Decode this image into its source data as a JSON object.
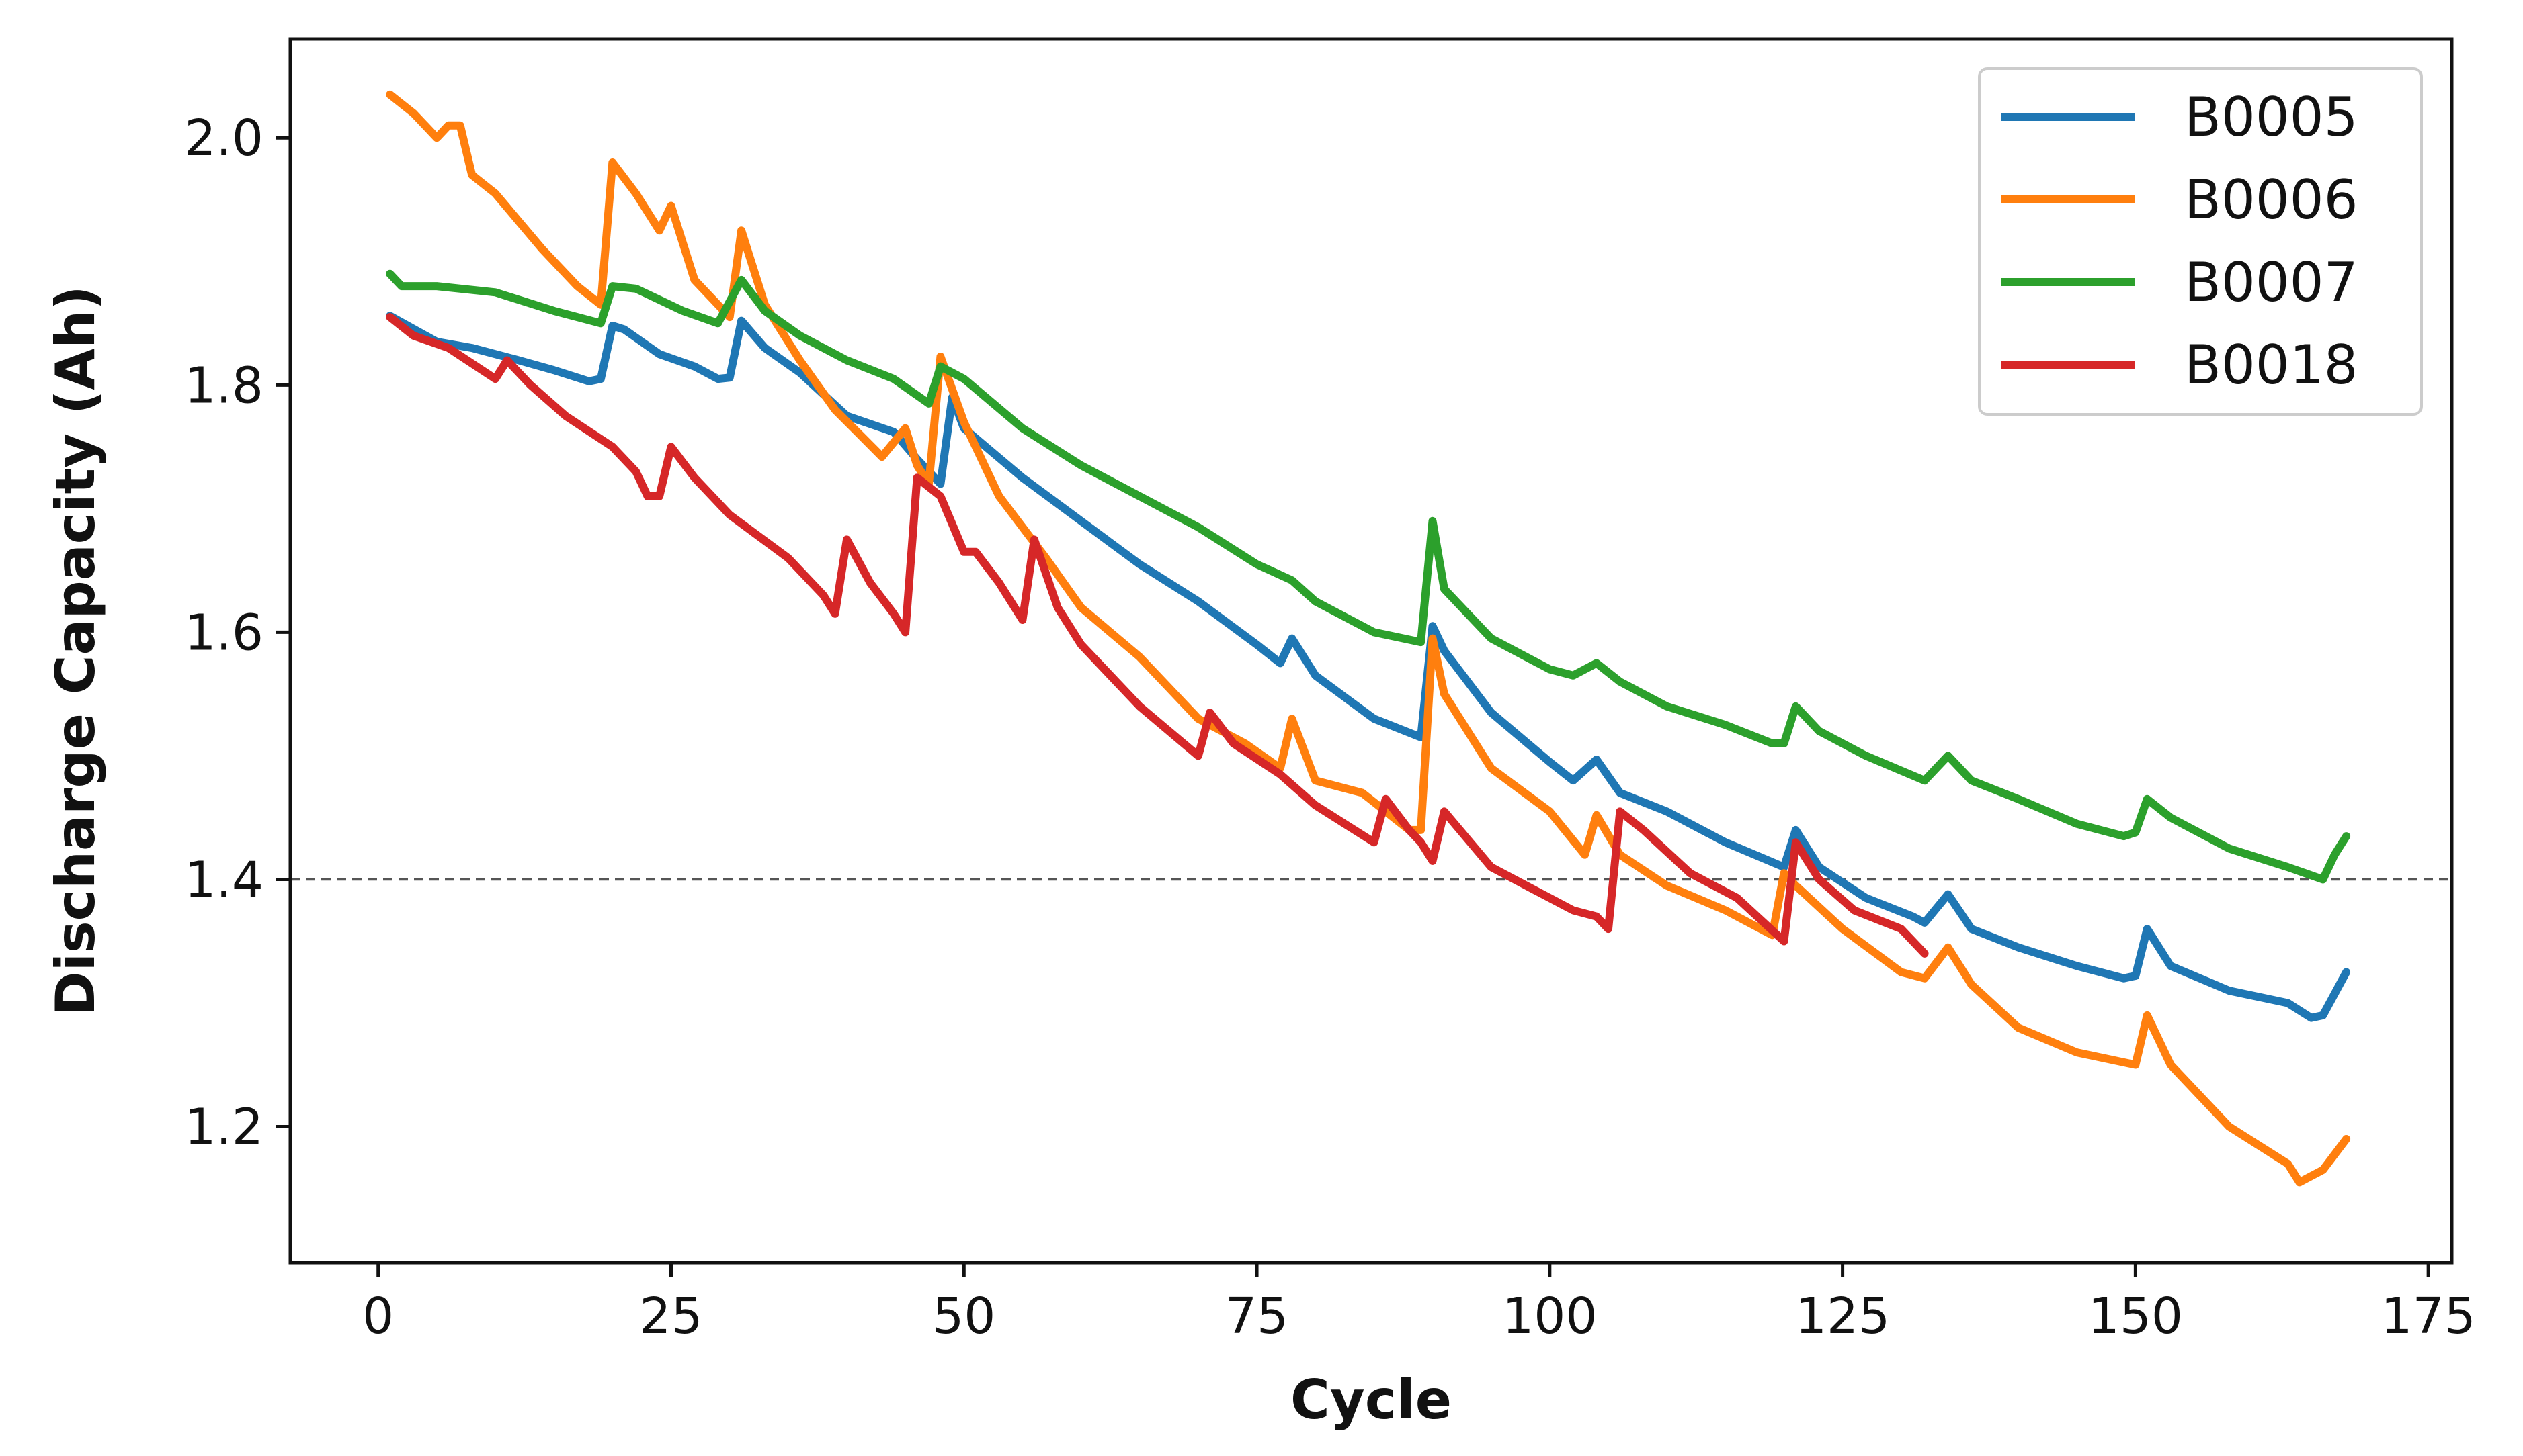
{
  "chart_data": {
    "type": "line",
    "title": "",
    "xlabel": "Cycle",
    "ylabel": "Discharge Capacity (Ah)",
    "xlim": [
      -7.5,
      177
    ],
    "ylim": [
      1.09,
      2.08
    ],
    "xticks": [
      0,
      25,
      50,
      75,
      100,
      125,
      150,
      175
    ],
    "yticks": [
      1.2,
      1.4,
      1.6,
      1.8,
      2.0
    ],
    "xtick_labels": [
      "0",
      "25",
      "50",
      "75",
      "100",
      "125",
      "150",
      "175"
    ],
    "ytick_labels": [
      "1.2",
      "1.4",
      "1.6",
      "1.8",
      "2.0"
    ],
    "grid": false,
    "legend_position": "top-right",
    "reference_line": {
      "y": 1.4,
      "style": "dashed",
      "color": "#555555"
    },
    "series": [
      {
        "name": "B0005",
        "color": "#1f77b4",
        "points": [
          [
            1,
            1.856
          ],
          [
            5,
            1.835
          ],
          [
            8,
            1.83
          ],
          [
            12,
            1.82
          ],
          [
            15,
            1.812
          ],
          [
            18,
            1.803
          ],
          [
            19,
            1.805
          ],
          [
            20,
            1.848
          ],
          [
            21,
            1.845
          ],
          [
            24,
            1.825
          ],
          [
            27,
            1.815
          ],
          [
            29,
            1.805
          ],
          [
            30,
            1.806
          ],
          [
            31,
            1.852
          ],
          [
            33,
            1.83
          ],
          [
            36,
            1.81
          ],
          [
            40,
            1.775
          ],
          [
            44,
            1.762
          ],
          [
            46,
            1.74
          ],
          [
            48,
            1.72
          ],
          [
            49,
            1.79
          ],
          [
            50,
            1.765
          ],
          [
            55,
            1.725
          ],
          [
            60,
            1.69
          ],
          [
            65,
            1.655
          ],
          [
            70,
            1.625
          ],
          [
            75,
            1.59
          ],
          [
            77,
            1.575
          ],
          [
            78,
            1.595
          ],
          [
            80,
            1.565
          ],
          [
            85,
            1.53
          ],
          [
            89,
            1.515
          ],
          [
            90,
            1.605
          ],
          [
            91,
            1.585
          ],
          [
            95,
            1.535
          ],
          [
            100,
            1.495
          ],
          [
            102,
            1.48
          ],
          [
            104,
            1.497
          ],
          [
            106,
            1.47
          ],
          [
            110,
            1.455
          ],
          [
            115,
            1.43
          ],
          [
            120,
            1.41
          ],
          [
            121,
            1.44
          ],
          [
            123,
            1.41
          ],
          [
            127,
            1.385
          ],
          [
            131,
            1.37
          ],
          [
            132,
            1.365
          ],
          [
            134,
            1.388
          ],
          [
            136,
            1.36
          ],
          [
            140,
            1.345
          ],
          [
            145,
            1.33
          ],
          [
            149,
            1.32
          ],
          [
            150,
            1.322
          ],
          [
            151,
            1.36
          ],
          [
            153,
            1.33
          ],
          [
            158,
            1.31
          ],
          [
            163,
            1.3
          ],
          [
            165,
            1.288
          ],
          [
            166,
            1.29
          ],
          [
            168,
            1.325
          ]
        ]
      },
      {
        "name": "B0006",
        "color": "#ff7f0e",
        "points": [
          [
            1,
            2.035
          ],
          [
            3,
            2.02
          ],
          [
            5,
            2.0
          ],
          [
            6,
            2.01
          ],
          [
            7,
            2.01
          ],
          [
            8,
            1.97
          ],
          [
            10,
            1.955
          ],
          [
            14,
            1.91
          ],
          [
            17,
            1.88
          ],
          [
            19,
            1.865
          ],
          [
            20,
            1.98
          ],
          [
            22,
            1.955
          ],
          [
            24,
            1.925
          ],
          [
            25,
            1.945
          ],
          [
            27,
            1.885
          ],
          [
            30,
            1.855
          ],
          [
            31,
            1.925
          ],
          [
            33,
            1.865
          ],
          [
            36,
            1.82
          ],
          [
            39,
            1.78
          ],
          [
            43,
            1.742
          ],
          [
            45,
            1.765
          ],
          [
            46,
            1.735
          ],
          [
            47,
            1.72
          ],
          [
            48,
            1.823
          ],
          [
            50,
            1.77
          ],
          [
            53,
            1.71
          ],
          [
            57,
            1.66
          ],
          [
            60,
            1.62
          ],
          [
            65,
            1.58
          ],
          [
            70,
            1.53
          ],
          [
            74,
            1.51
          ],
          [
            77,
            1.49
          ],
          [
            78,
            1.53
          ],
          [
            80,
            1.48
          ],
          [
            84,
            1.47
          ],
          [
            88,
            1.44
          ],
          [
            89,
            1.44
          ],
          [
            90,
            1.595
          ],
          [
            91,
            1.55
          ],
          [
            95,
            1.49
          ],
          [
            100,
            1.455
          ],
          [
            103,
            1.42
          ],
          [
            104,
            1.452
          ],
          [
            106,
            1.42
          ],
          [
            110,
            1.395
          ],
          [
            115,
            1.375
          ],
          [
            119,
            1.355
          ],
          [
            120,
            1.405
          ],
          [
            121,
            1.395
          ],
          [
            125,
            1.36
          ],
          [
            130,
            1.325
          ],
          [
            132,
            1.32
          ],
          [
            134,
            1.345
          ],
          [
            136,
            1.315
          ],
          [
            140,
            1.28
          ],
          [
            145,
            1.26
          ],
          [
            150,
            1.25
          ],
          [
            151,
            1.29
          ],
          [
            153,
            1.25
          ],
          [
            158,
            1.2
          ],
          [
            163,
            1.17
          ],
          [
            164,
            1.155
          ],
          [
            166,
            1.165
          ],
          [
            168,
            1.19
          ]
        ]
      },
      {
        "name": "B0007",
        "color": "#2ca02c",
        "points": [
          [
            1,
            1.89
          ],
          [
            2,
            1.88
          ],
          [
            5,
            1.88
          ],
          [
            10,
            1.875
          ],
          [
            15,
            1.86
          ],
          [
            19,
            1.85
          ],
          [
            20,
            1.88
          ],
          [
            22,
            1.878
          ],
          [
            26,
            1.86
          ],
          [
            29,
            1.85
          ],
          [
            31,
            1.885
          ],
          [
            33,
            1.86
          ],
          [
            36,
            1.84
          ],
          [
            40,
            1.82
          ],
          [
            44,
            1.805
          ],
          [
            47,
            1.785
          ],
          [
            48,
            1.815
          ],
          [
            50,
            1.805
          ],
          [
            55,
            1.765
          ],
          [
            60,
            1.735
          ],
          [
            65,
            1.71
          ],
          [
            70,
            1.685
          ],
          [
            75,
            1.655
          ],
          [
            78,
            1.642
          ],
          [
            80,
            1.625
          ],
          [
            85,
            1.6
          ],
          [
            89,
            1.592
          ],
          [
            90,
            1.69
          ],
          [
            91,
            1.635
          ],
          [
            95,
            1.595
          ],
          [
            100,
            1.57
          ],
          [
            102,
            1.565
          ],
          [
            104,
            1.575
          ],
          [
            106,
            1.56
          ],
          [
            110,
            1.54
          ],
          [
            115,
            1.525
          ],
          [
            119,
            1.51
          ],
          [
            120,
            1.51
          ],
          [
            121,
            1.54
          ],
          [
            123,
            1.52
          ],
          [
            127,
            1.5
          ],
          [
            132,
            1.48
          ],
          [
            134,
            1.5
          ],
          [
            136,
            1.48
          ],
          [
            140,
            1.465
          ],
          [
            145,
            1.445
          ],
          [
            149,
            1.435
          ],
          [
            150,
            1.438
          ],
          [
            151,
            1.465
          ],
          [
            153,
            1.45
          ],
          [
            158,
            1.425
          ],
          [
            163,
            1.41
          ],
          [
            166,
            1.4
          ],
          [
            167,
            1.42
          ],
          [
            168,
            1.435
          ]
        ]
      },
      {
        "name": "B0018",
        "color": "#d62728",
        "points": [
          [
            1,
            1.855
          ],
          [
            3,
            1.84
          ],
          [
            6,
            1.83
          ],
          [
            10,
            1.805
          ],
          [
            11,
            1.82
          ],
          [
            13,
            1.8
          ],
          [
            16,
            1.775
          ],
          [
            20,
            1.75
          ],
          [
            22,
            1.73
          ],
          [
            23,
            1.71
          ],
          [
            24,
            1.71
          ],
          [
            25,
            1.75
          ],
          [
            27,
            1.725
          ],
          [
            30,
            1.695
          ],
          [
            35,
            1.66
          ],
          [
            38,
            1.63
          ],
          [
            39,
            1.615
          ],
          [
            40,
            1.675
          ],
          [
            42,
            1.64
          ],
          [
            44,
            1.615
          ],
          [
            45,
            1.6
          ],
          [
            46,
            1.725
          ],
          [
            48,
            1.71
          ],
          [
            50,
            1.665
          ],
          [
            51,
            1.665
          ],
          [
            53,
            1.64
          ],
          [
            55,
            1.61
          ],
          [
            56,
            1.675
          ],
          [
            58,
            1.62
          ],
          [
            60,
            1.59
          ],
          [
            65,
            1.54
          ],
          [
            70,
            1.5
          ],
          [
            71,
            1.535
          ],
          [
            73,
            1.51
          ],
          [
            77,
            1.485
          ],
          [
            80,
            1.46
          ],
          [
            85,
            1.43
          ],
          [
            86,
            1.465
          ],
          [
            88,
            1.44
          ],
          [
            89,
            1.43
          ],
          [
            90,
            1.415
          ],
          [
            91,
            1.455
          ],
          [
            95,
            1.41
          ],
          [
            100,
            1.385
          ],
          [
            102,
            1.375
          ],
          [
            104,
            1.37
          ],
          [
            105,
            1.36
          ],
          [
            106,
            1.455
          ],
          [
            108,
            1.44
          ],
          [
            112,
            1.405
          ],
          [
            116,
            1.385
          ],
          [
            120,
            1.35
          ],
          [
            121,
            1.43
          ],
          [
            123,
            1.4
          ],
          [
            126,
            1.375
          ],
          [
            130,
            1.36
          ],
          [
            132,
            1.34
          ]
        ]
      }
    ]
  }
}
